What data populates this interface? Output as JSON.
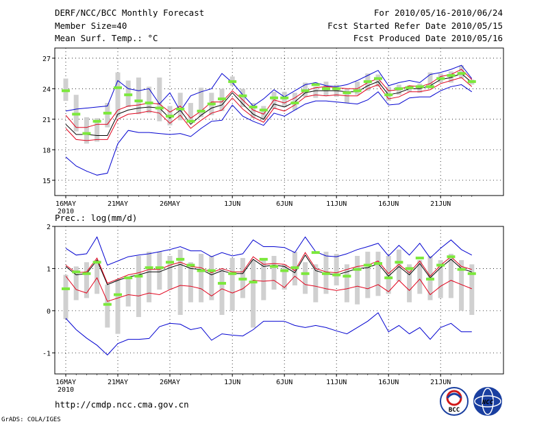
{
  "header": {
    "title": "DERF/NCC/BCC Monthly Forecast",
    "member_size": "Member Size=40",
    "variable": "Mean Surf. Temp.: °C",
    "period": "For 2010/05/16-2010/06/24",
    "start_date": "Fcst Started Refer Date 2010/05/15",
    "produced_date": "Fcst Produced Date 2010/05/16"
  },
  "footer": {
    "url": "http://cmdp.ncc.cma.gov.cn",
    "credit": "GrADS: COLA/IGES",
    "logo1_text": "BCC",
    "logo2_text": "NCC"
  },
  "colors": {
    "ensemble_box": "#d0d0d0",
    "member_mark": "#7ce83c",
    "mean_line": "#000000",
    "spread_line": "#e0001a",
    "extreme_line": "#0000d0",
    "grid": "#000000"
  },
  "chart_data": [
    {
      "type": "line",
      "ylabel": "Mean Surf. Temp.: °C",
      "ylim": [
        13.5,
        28
      ],
      "yticks": [
        15,
        18,
        21,
        24,
        27
      ],
      "xticks": [
        {
          "day": 1,
          "label": "16MAY",
          "sublabel": "2010"
        },
        {
          "day": 6,
          "label": "21MAY"
        },
        {
          "day": 11,
          "label": "26MAY"
        },
        {
          "day": 17,
          "label": "1JUN"
        },
        {
          "day": 22,
          "label": "6JUN"
        },
        {
          "day": 27,
          "label": "11JUN"
        },
        {
          "day": 32,
          "label": "16JUN"
        },
        {
          "day": 37,
          "label": "21JUN"
        }
      ],
      "x": [
        1,
        2,
        3,
        4,
        5,
        6,
        7,
        8,
        9,
        10,
        11,
        12,
        13,
        14,
        15,
        16,
        17,
        18,
        19,
        20,
        21,
        22,
        23,
        24,
        25,
        26,
        27,
        28,
        29,
        30,
        31,
        32,
        33,
        34,
        35,
        36,
        37,
        38,
        39,
        40
      ],
      "series": [
        {
          "name": "max",
          "values": [
            17.3,
            16.4,
            15.9,
            15.5,
            15.7,
            18.6,
            19.9,
            19.7,
            19.7,
            19.6,
            19.5,
            19.6,
            19.3,
            20.1,
            20.8,
            20.9,
            22.4,
            21.3,
            20.8,
            20.4,
            21.6,
            21.3,
            21.9,
            22.5,
            22.8,
            22.8,
            22.7,
            22.6,
            22.5,
            22.9,
            23.7,
            22.4,
            22.5,
            23.1,
            23.2,
            23.2,
            23.8,
            24.2,
            24.4,
            23.7
          ]
        },
        {
          "name": "p90",
          "values": [
            21.4,
            20.2,
            20.2,
            20.5,
            20.5,
            21.9,
            22.3,
            22.4,
            22.6,
            22.5,
            21.7,
            22.3,
            21.1,
            21.8,
            22.7,
            22.7,
            23.8,
            22.9,
            21.9,
            21.5,
            22.9,
            22.6,
            23.1,
            23.8,
            24.1,
            24.2,
            24.1,
            24.0,
            24.0,
            24.6,
            25.0,
            23.8,
            23.9,
            24.3,
            24.2,
            24.5,
            25.2,
            25.4,
            25.9,
            24.9
          ]
        },
        {
          "name": "mean",
          "values": [
            20.5,
            19.5,
            19.5,
            19.4,
            19.4,
            21.5,
            21.9,
            22.1,
            22.2,
            22.1,
            21.1,
            21.9,
            20.5,
            21.4,
            22.1,
            22.4,
            23.6,
            22.5,
            21.5,
            21.0,
            22.5,
            22.2,
            22.7,
            23.6,
            23.8,
            23.8,
            23.8,
            23.7,
            23.7,
            24.3,
            24.7,
            23.4,
            23.6,
            24.0,
            24.0,
            24.3,
            24.9,
            25.1,
            25.5,
            24.6
          ]
        },
        {
          "name": "p10",
          "values": [
            20.1,
            19.0,
            18.9,
            19.0,
            19.0,
            21.0,
            21.5,
            21.6,
            21.8,
            21.6,
            20.6,
            21.4,
            20.1,
            20.9,
            21.6,
            21.9,
            23.1,
            22.0,
            21.2,
            20.7,
            22.1,
            21.8,
            22.4,
            23.2,
            23.4,
            23.3,
            23.4,
            23.3,
            23.3,
            24.0,
            24.4,
            23.0,
            23.2,
            23.7,
            23.7,
            23.9,
            24.5,
            24.8,
            25.1,
            24.2
          ]
        },
        {
          "name": "min",
          "values": [
            21.8,
            22.0,
            22.1,
            22.2,
            22.3,
            24.8,
            24.0,
            23.8,
            24.0,
            22.5,
            23.6,
            21.8,
            23.3,
            23.7,
            24.0,
            25.5,
            24.6,
            23.4,
            22.3,
            23.0,
            23.9,
            23.2,
            23.8,
            24.4,
            24.6,
            24.3,
            24.2,
            24.4,
            24.8,
            25.3,
            25.8,
            24.3,
            24.6,
            24.8,
            24.6,
            25.4,
            25.6,
            25.9,
            26.3,
            25.0
          ]
        }
      ],
      "boxes": [
        [
          22.8,
          25.0
        ],
        [
          19.8,
          23.4
        ],
        [
          18.6,
          21.2
        ],
        [
          18.8,
          21.1
        ],
        [
          20.2,
          22.6
        ],
        [
          21.3,
          25.6
        ],
        [
          22.2,
          24.8
        ],
        [
          21.5,
          25.1
        ],
        [
          21.6,
          24.2
        ],
        [
          20.8,
          25.1
        ],
        [
          20.4,
          22.3
        ],
        [
          20.9,
          23.6
        ],
        [
          20.7,
          22.6
        ],
        [
          21.2,
          24.1
        ],
        [
          21.4,
          23.6
        ],
        [
          21.8,
          24.0
        ],
        [
          24.3,
          25.2
        ],
        [
          22.2,
          24.0
        ],
        [
          21.1,
          22.6
        ],
        [
          20.9,
          22.3
        ],
        [
          22.0,
          23.7
        ],
        [
          22.2,
          23.7
        ],
        [
          21.9,
          23.6
        ],
        [
          23.2,
          24.6
        ],
        [
          23.1,
          24.2
        ],
        [
          23.3,
          24.7
        ],
        [
          23.2,
          24.4
        ],
        [
          22.6,
          24.0
        ],
        [
          23.4,
          24.7
        ],
        [
          23.8,
          25.5
        ],
        [
          24.2,
          25.4
        ],
        [
          22.8,
          24.2
        ],
        [
          23.4,
          24.4
        ],
        [
          23.7,
          24.3
        ],
        [
          23.6,
          24.5
        ],
        [
          24.0,
          25.6
        ],
        [
          24.6,
          25.5
        ],
        [
          24.6,
          25.7
        ],
        [
          25.0,
          26.3
        ],
        [
          24.4,
          24.9
        ]
      ],
      "markers": [
        23.8,
        21.5,
        19.6,
        20.8,
        21.6,
        24.1,
        23.4,
        22.8,
        22.6,
        22.1,
        21.3,
        22.0,
        20.8,
        21.8,
        22.5,
        23.0,
        24.7,
        23.3,
        22.2,
        21.9,
        23.1,
        23.1,
        22.6,
        23.8,
        24.4,
        24.0,
        24.0,
        23.6,
        23.8,
        24.7,
        25.0,
        23.4,
        24.0,
        24.1,
        24.2,
        24.2,
        25.0,
        25.3,
        25.5,
        24.7
      ]
    },
    {
      "type": "line",
      "ylabel": "Prec.: log(mm/d)",
      "ylim": [
        -1.5,
        2.0
      ],
      "yticks": [
        -1,
        0,
        1,
        2
      ],
      "xticks": [
        {
          "day": 1,
          "label": "16MAY",
          "sublabel": "2010"
        },
        {
          "day": 6,
          "label": "21MAY"
        },
        {
          "day": 11,
          "label": "26MAY"
        },
        {
          "day": 17,
          "label": "1JUN"
        },
        {
          "day": 22,
          "label": "6JUN"
        },
        {
          "day": 27,
          "label": "11JUN"
        },
        {
          "day": 32,
          "label": "16JUN"
        },
        {
          "day": 37,
          "label": "21JUN"
        }
      ],
      "x": [
        1,
        2,
        3,
        4,
        5,
        6,
        7,
        8,
        9,
        10,
        11,
        12,
        13,
        14,
        15,
        16,
        17,
        18,
        19,
        20,
        21,
        22,
        23,
        24,
        25,
        26,
        27,
        28,
        29,
        30,
        31,
        32,
        33,
        34,
        35,
        36,
        37,
        38,
        39,
        40
      ],
      "series": [
        {
          "name": "max",
          "values": [
            -0.18,
            -0.45,
            -0.65,
            -0.82,
            -1.05,
            -0.78,
            -0.68,
            -0.68,
            -0.66,
            -0.38,
            -0.3,
            -0.32,
            -0.45,
            -0.4,
            -0.7,
            -0.55,
            -0.58,
            -0.6,
            -0.45,
            -0.25,
            -0.25,
            -0.25,
            -0.35,
            -0.4,
            -0.35,
            -0.4,
            -0.48,
            -0.55,
            -0.4,
            -0.25,
            -0.05,
            -0.5,
            -0.35,
            -0.55,
            -0.4,
            -0.68,
            -0.4,
            -0.3,
            -0.5,
            -0.5
          ]
        },
        {
          "name": "p90",
          "values": [
            0.82,
            0.5,
            0.42,
            0.78,
            0.22,
            0.3,
            0.38,
            0.35,
            0.42,
            0.38,
            0.5,
            0.6,
            0.58,
            0.52,
            0.35,
            0.52,
            0.42,
            0.52,
            0.72,
            0.7,
            0.72,
            0.55,
            0.82,
            0.62,
            0.58,
            0.52,
            0.48,
            0.52,
            0.58,
            0.52,
            0.62,
            0.45,
            0.72,
            0.48,
            0.75,
            0.38,
            0.58,
            0.72,
            0.62,
            0.52
          ]
        },
        {
          "name": "mean",
          "values": [
            1.05,
            0.85,
            0.88,
            1.2,
            0.62,
            0.72,
            0.8,
            0.85,
            0.92,
            0.92,
            1.02,
            1.1,
            1.0,
            0.98,
            0.85,
            0.95,
            0.88,
            0.88,
            1.22,
            1.05,
            1.08,
            1.05,
            0.9,
            1.32,
            0.95,
            0.88,
            0.85,
            0.92,
            1.0,
            1.02,
            1.12,
            0.82,
            1.05,
            0.85,
            1.12,
            0.78,
            1.02,
            1.22,
            1.0,
            0.92
          ]
        },
        {
          "name": "p10",
          "values": [
            1.08,
            0.9,
            0.92,
            1.25,
            0.65,
            0.75,
            0.85,
            0.9,
            0.98,
            0.98,
            1.08,
            1.15,
            1.05,
            1.02,
            0.9,
            1.0,
            0.92,
            0.92,
            1.28,
            1.1,
            1.12,
            1.1,
            0.95,
            1.38,
            1.0,
            0.92,
            0.9,
            0.98,
            1.05,
            1.08,
            1.18,
            0.88,
            1.1,
            0.9,
            1.18,
            0.82,
            1.08,
            1.28,
            1.05,
            0.98
          ]
        },
        {
          "name": "min",
          "values": [
            1.48,
            1.32,
            1.35,
            1.75,
            1.08,
            1.18,
            1.28,
            1.32,
            1.35,
            1.4,
            1.45,
            1.52,
            1.42,
            1.42,
            1.28,
            1.38,
            1.3,
            1.35,
            1.68,
            1.52,
            1.52,
            1.5,
            1.38,
            1.75,
            1.4,
            1.3,
            1.28,
            1.35,
            1.45,
            1.52,
            1.6,
            1.3,
            1.55,
            1.32,
            1.6,
            1.25,
            1.48,
            1.68,
            1.45,
            1.32
          ]
        }
      ],
      "boxes": [
        [
          -0.2,
          0.85
        ],
        [
          0.25,
          1.05
        ],
        [
          0.3,
          1.15
        ],
        [
          0.4,
          1.2
        ],
        [
          -0.4,
          0.62
        ],
        [
          -0.55,
          0.75
        ],
        [
          0.1,
          0.8
        ],
        [
          -0.15,
          1.3
        ],
        [
          0.2,
          1.4
        ],
        [
          0.5,
          1.4
        ],
        [
          0.5,
          1.3
        ],
        [
          -0.1,
          1.45
        ],
        [
          0.2,
          1.15
        ],
        [
          0.2,
          1.35
        ],
        [
          0.25,
          1.3
        ],
        [
          -0.1,
          1.0
        ],
        [
          0.0,
          1.25
        ],
        [
          0.3,
          1.25
        ],
        [
          -0.4,
          1.2
        ],
        [
          0.25,
          1.25
        ],
        [
          0.5,
          1.3
        ],
        [
          0.5,
          1.1
        ],
        [
          0.6,
          1.4
        ],
        [
          0.4,
          1.15
        ],
        [
          0.2,
          1.1
        ],
        [
          0.4,
          1.4
        ],
        [
          0.6,
          1.35
        ],
        [
          0.2,
          1.1
        ],
        [
          0.15,
          1.3
        ],
        [
          0.3,
          1.4
        ],
        [
          0.35,
          1.4
        ],
        [
          0.4,
          1.3
        ],
        [
          0.7,
          1.45
        ],
        [
          0.2,
          1.1
        ],
        [
          0.4,
          1.2
        ],
        [
          0.25,
          1.3
        ],
        [
          0.3,
          1.2
        ],
        [
          0.3,
          1.35
        ],
        [
          0.0,
          1.2
        ],
        [
          -0.1,
          1.1
        ]
      ],
      "markers": [
        0.52,
        0.92,
        0.88,
        1.15,
        0.15,
        0.38,
        0.78,
        0.82,
        1.02,
        1.02,
        1.15,
        1.22,
        1.08,
        0.95,
        0.95,
        0.65,
        0.88,
        0.75,
        0.68,
        1.22,
        1.05,
        0.95,
        1.02,
        0.88,
        1.38,
        0.88,
        0.85,
        0.82,
        0.98,
        1.08,
        1.12,
        0.78,
        1.15,
        1.0,
        1.25,
        0.75,
        1.08,
        1.28,
        0.98,
        0.88
      ]
    }
  ]
}
